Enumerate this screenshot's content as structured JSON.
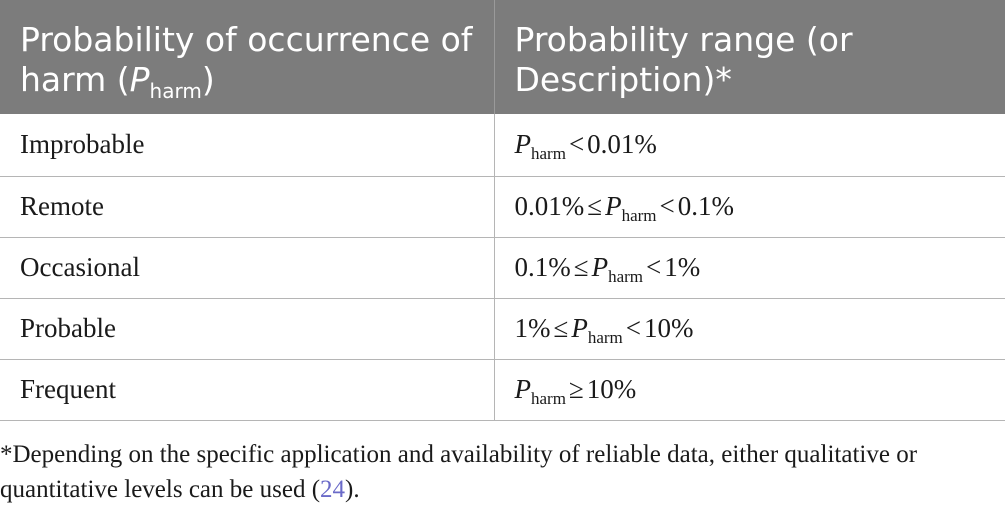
{
  "table": {
    "header": {
      "col1_text": "Probability of occurrence of harm (",
      "col1_symbol": "P",
      "col1_subscript": "harm",
      "col1_close": ")",
      "col2_text": "Probability range (or Description)*"
    },
    "rows": [
      {
        "level": "Improbable",
        "range_parts": [
          "",
          "P",
          "harm",
          "<",
          "0.01%"
        ]
      },
      {
        "level": "Remote",
        "range_parts": [
          "0.01%",
          "≤",
          "P",
          "harm",
          "<",
          "0.1%"
        ]
      },
      {
        "level": "Occasional",
        "range_parts": [
          "0.1%",
          "≤",
          "P",
          "harm",
          "<",
          "1%"
        ]
      },
      {
        "level": "Probable",
        "range_parts": [
          "1%",
          "≤",
          "P",
          "harm",
          "<",
          "10%"
        ]
      },
      {
        "level": "Frequent",
        "range_parts": [
          "",
          "P",
          "harm",
          "≥",
          "10%"
        ]
      }
    ]
  },
  "footnote": {
    "text": "*Depending on the specific application and availability of reliable data, either qualitative or quantitative levels can be used (",
    "ref": "24",
    "close": ")."
  },
  "colors": {
    "header_bg": "#7c7c7c",
    "header_text": "#ffffff",
    "grid_line": "#b5b5b5",
    "ref_link": "#6a6ac8"
  }
}
